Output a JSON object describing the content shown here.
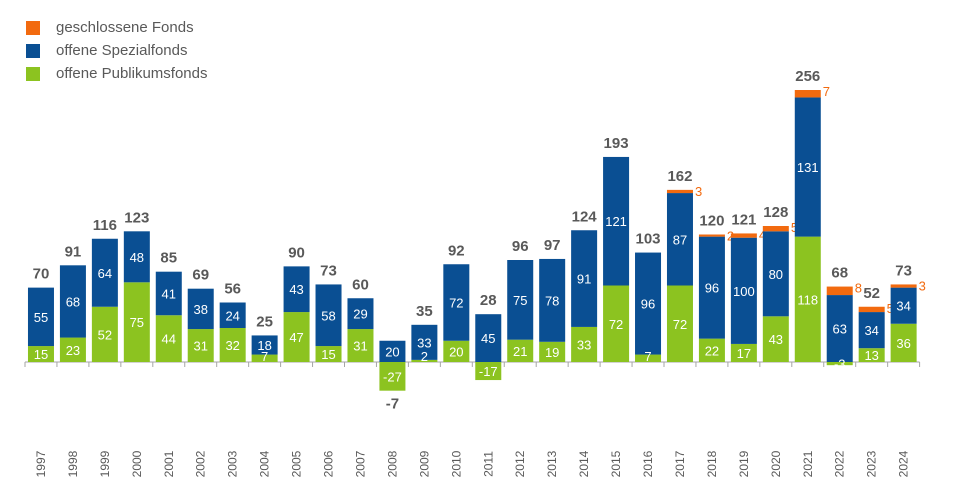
{
  "colors": {
    "closed": "#F26A0F",
    "special": "#0A4F93",
    "public": "#8CC320",
    "total": "#595959",
    "axis": "#A6A6A6"
  },
  "legend": [
    {
      "label": "geschlossene Fonds",
      "color": "#F26A0F"
    },
    {
      "label": "offene Spezialfonds",
      "color": "#0A4F93"
    },
    {
      "label": "offene Publikumsfonds",
      "color": "#8CC320"
    }
  ],
  "chart_data": {
    "type": "bar",
    "stacked": true,
    "categories": [
      "1997",
      "1998",
      "1999",
      "2000",
      "2001",
      "2002",
      "2003",
      "2004",
      "2005",
      "2006",
      "2007",
      "2008",
      "2009",
      "2010",
      "2011",
      "2012",
      "2013",
      "2014",
      "2015",
      "2016",
      "2017",
      "2018",
      "2019",
      "2020",
      "2021",
      "2022",
      "2023",
      "2024"
    ],
    "series": [
      {
        "name": "offene Publikumsfonds",
        "key": "public",
        "values": [
          15,
          23,
          52,
          75,
          44,
          31,
          32,
          7,
          47,
          15,
          31,
          -27,
          2,
          20,
          -17,
          21,
          19,
          33,
          72,
          7,
          72,
          22,
          17,
          43,
          118,
          -3,
          13,
          36
        ]
      },
      {
        "name": "offene Spezialfonds",
        "key": "special",
        "values": [
          55,
          68,
          64,
          48,
          41,
          38,
          24,
          18,
          43,
          58,
          29,
          20,
          33,
          72,
          45,
          75,
          78,
          91,
          121,
          96,
          87,
          96,
          100,
          80,
          131,
          63,
          34,
          34
        ]
      },
      {
        "name": "geschlossene Fonds",
        "key": "closed",
        "values": [
          0,
          0,
          0,
          0,
          0,
          0,
          0,
          0,
          0,
          0,
          0,
          0,
          0,
          0,
          0,
          0,
          0,
          0,
          0,
          0,
          3,
          2,
          4,
          5,
          7,
          8,
          5,
          3
        ]
      }
    ],
    "closed_labels": [
      "",
      "",
      "",
      "",
      "",
      "",
      "",
      "",
      "",
      "",
      "",
      "",
      "",
      "",
      "",
      "",
      "",
      "",
      "",
      "",
      "3",
      "2",
      "4",
      "5",
      "7",
      "8",
      "5",
      "3"
    ],
    "totals": [
      "70",
      "91",
      "116",
      "123",
      "85",
      "69",
      "56",
      "25",
      "90",
      "73",
      "60",
      "-7",
      "35",
      "92",
      "28",
      "96",
      "97",
      "124",
      "193",
      "103",
      "162",
      "120",
      "121",
      "128",
      "256",
      "68",
      "52",
      "73"
    ],
    "ylim": [
      -35,
      270
    ],
    "grid": false,
    "legend_position": "top-left"
  }
}
